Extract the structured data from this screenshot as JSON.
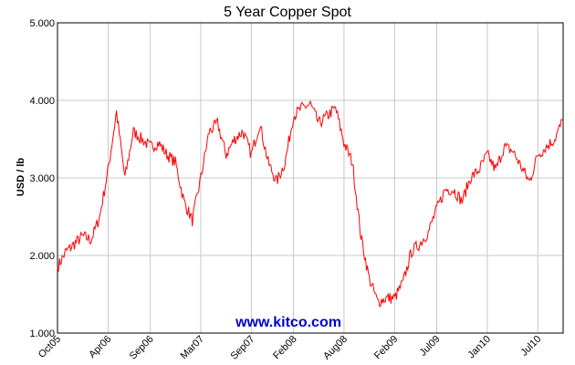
{
  "chart_data": {
    "type": "line",
    "title": "5 Year Copper Spot",
    "ylabel": "USD / lb",
    "xlabel": "",
    "ylim": [
      1.0,
      5.0
    ],
    "yticks": [
      "1.000",
      "2.000",
      "3.000",
      "4.000",
      "5.000"
    ],
    "yticks_values": [
      1.0,
      2.0,
      3.0,
      4.0,
      5.0
    ],
    "xticks": [
      "Oct05",
      "Apr06",
      "Sep06",
      "Mar07",
      "Sep07",
      "Feb08",
      "Aug08",
      "Feb09",
      "Jul09",
      "Jan10",
      "Jul10"
    ],
    "xtick_index": [
      0,
      6,
      11,
      17,
      23,
      28,
      34,
      40,
      45,
      51,
      57
    ],
    "x_months": [
      "Oct05",
      "Nov05",
      "Dec05",
      "Jan06",
      "Feb06",
      "Mar06",
      "Apr06",
      "May06",
      "Jun06",
      "Jul06",
      "Aug06",
      "Sep06",
      "Oct06",
      "Nov06",
      "Dec06",
      "Jan07",
      "Feb07",
      "Mar07",
      "Apr07",
      "May07",
      "Jun07",
      "Jul07",
      "Aug07",
      "Sep07",
      "Oct07",
      "Nov07",
      "Dec07",
      "Jan08",
      "Feb08",
      "Mar08",
      "Apr08",
      "May08",
      "Jun08",
      "Jul08",
      "Aug08",
      "Sep08",
      "Oct08",
      "Nov08",
      "Dec08",
      "Jan09",
      "Feb09",
      "Mar09",
      "Apr09",
      "May09",
      "Jun09",
      "Jul09",
      "Aug09",
      "Sep09",
      "Oct09",
      "Nov09",
      "Dec09",
      "Jan10",
      "Feb10",
      "Mar10",
      "Apr10",
      "May10",
      "Jun10",
      "Jul10",
      "Aug10",
      "Sep10",
      "Oct10"
    ],
    "grid": true,
    "series": [
      {
        "color": "#ff0000",
        "values": [
          1.85,
          2.05,
          2.15,
          2.25,
          2.2,
          2.5,
          3.1,
          3.85,
          3.0,
          3.6,
          3.5,
          3.4,
          3.45,
          3.3,
          3.2,
          2.7,
          2.45,
          3.0,
          3.6,
          3.7,
          3.3,
          3.5,
          3.6,
          3.3,
          3.7,
          3.2,
          2.95,
          3.2,
          3.8,
          3.9,
          3.95,
          3.7,
          3.8,
          3.9,
          3.45,
          3.2,
          2.25,
          1.7,
          1.4,
          1.45,
          1.45,
          1.65,
          2.05,
          2.15,
          2.3,
          2.6,
          2.85,
          2.85,
          2.7,
          3.0,
          3.1,
          3.3,
          3.1,
          3.4,
          3.35,
          3.15,
          2.95,
          3.3,
          3.4,
          3.5,
          3.75
        ]
      }
    ],
    "watermark": "www.kitco.com"
  }
}
